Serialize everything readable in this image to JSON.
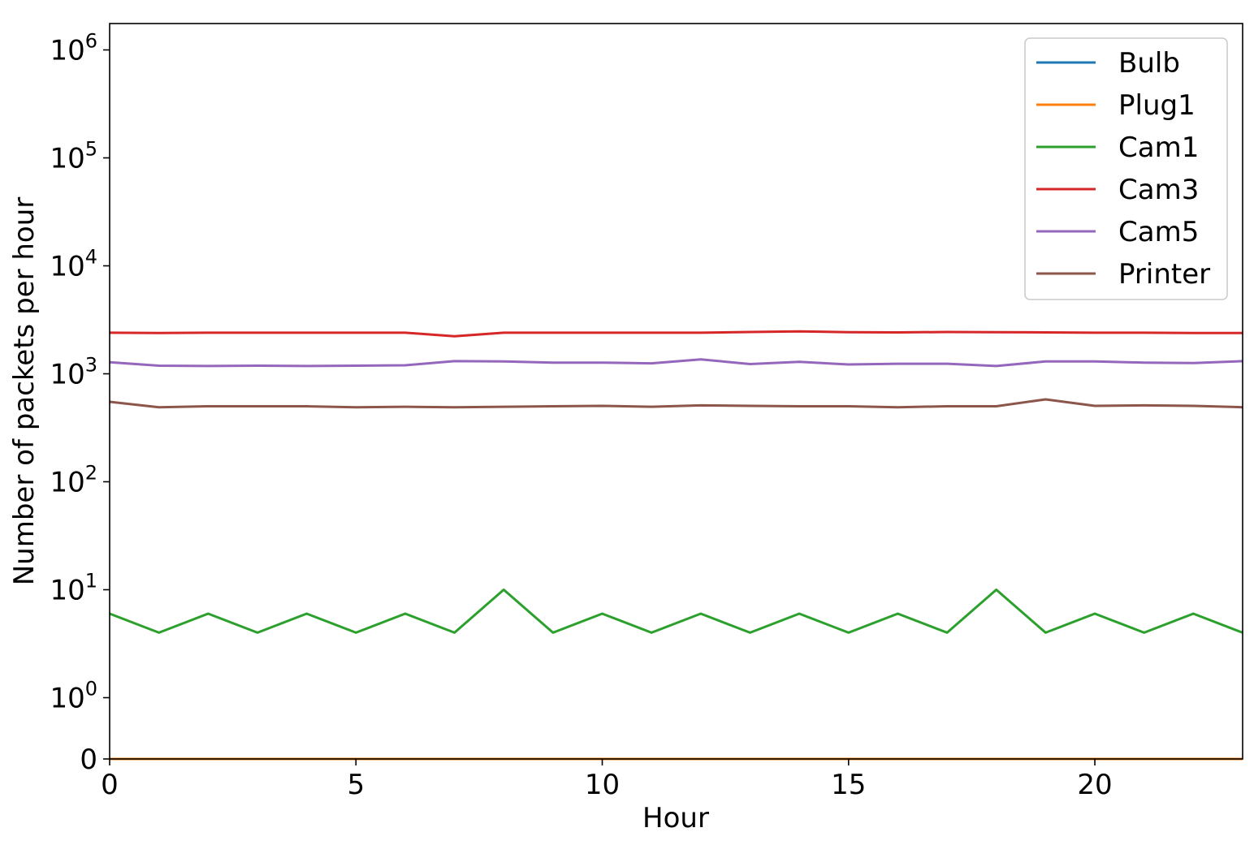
{
  "chart_data": {
    "type": "line",
    "title": "",
    "xlabel": "Hour",
    "ylabel": "Number of packets per hour",
    "yscale": "symlog",
    "xlim": [
      0,
      23
    ],
    "ylim": [
      0,
      1000000
    ],
    "x_ticks": [
      {
        "value": 0,
        "label": "0"
      },
      {
        "value": 5,
        "label": "5"
      },
      {
        "value": 10,
        "label": "10"
      },
      {
        "value": 15,
        "label": "15"
      },
      {
        "value": 20,
        "label": "20"
      }
    ],
    "y_ticks": [
      {
        "value": 0,
        "base": "0",
        "exp": ""
      },
      {
        "value": 1,
        "base": "10",
        "exp": "0"
      },
      {
        "value": 10,
        "base": "10",
        "exp": "1"
      },
      {
        "value": 100,
        "base": "10",
        "exp": "2"
      },
      {
        "value": 1000,
        "base": "10",
        "exp": "3"
      },
      {
        "value": 10000,
        "base": "10",
        "exp": "4"
      },
      {
        "value": 100000,
        "base": "10",
        "exp": "5"
      },
      {
        "value": 1000000,
        "base": "10",
        "exp": "6"
      }
    ],
    "grid": false,
    "legend_position": "top-right",
    "x": [
      0,
      1,
      2,
      3,
      4,
      5,
      6,
      7,
      8,
      9,
      10,
      11,
      12,
      13,
      14,
      15,
      16,
      17,
      18,
      19,
      20,
      21,
      22,
      23
    ],
    "series": [
      {
        "name": "Bulb",
        "color": "#1f77b4",
        "values": [
          0,
          0,
          0,
          0,
          0,
          0,
          0,
          0,
          0,
          0,
          0,
          0,
          0,
          0,
          0,
          0,
          0,
          0,
          0,
          0,
          0,
          0,
          0,
          0
        ]
      },
      {
        "name": "Plug1",
        "color": "#ff7f0e",
        "values": [
          0,
          0,
          0,
          0,
          0,
          0,
          0,
          0,
          0,
          0,
          0,
          0,
          0,
          0,
          0,
          0,
          0,
          0,
          0,
          0,
          0,
          0,
          0,
          0
        ]
      },
      {
        "name": "Cam1",
        "color": "#2ca02c",
        "values": [
          6,
          4,
          6,
          4,
          6,
          4,
          6,
          4,
          10,
          4,
          6,
          4,
          6,
          4,
          6,
          4,
          6,
          4,
          10,
          4,
          6,
          4,
          6,
          4
        ]
      },
      {
        "name": "Cam3",
        "color": "#d62728",
        "values": [
          2400,
          2390,
          2400,
          2400,
          2400,
          2400,
          2400,
          2230,
          2400,
          2400,
          2400,
          2400,
          2400,
          2440,
          2470,
          2430,
          2420,
          2440,
          2430,
          2420,
          2400,
          2400,
          2390,
          2390
        ]
      },
      {
        "name": "Cam5",
        "color": "#9467bd",
        "values": [
          1280,
          1190,
          1180,
          1190,
          1180,
          1190,
          1200,
          1310,
          1300,
          1270,
          1270,
          1250,
          1360,
          1230,
          1290,
          1220,
          1240,
          1240,
          1180,
          1300,
          1300,
          1270,
          1260,
          1310
        ]
      },
      {
        "name": "Printer",
        "color": "#8c564b",
        "values": [
          550,
          490,
          500,
          500,
          500,
          490,
          495,
          490,
          495,
          500,
          505,
          495,
          510,
          505,
          500,
          500,
          490,
          500,
          500,
          580,
          505,
          510,
          505,
          490
        ]
      }
    ]
  }
}
